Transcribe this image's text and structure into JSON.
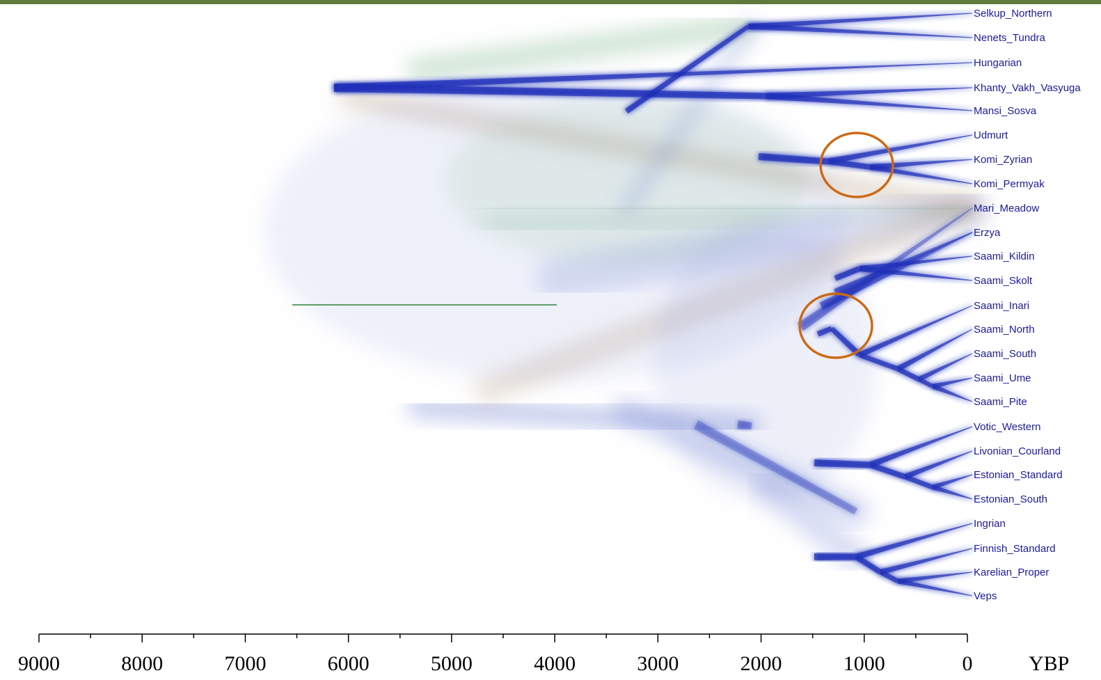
{
  "tree": {
    "taxa": [
      "Selkup_Northern",
      "Nenets_Tundra",
      "Hungarian",
      "Khanty_Vakh_Vasyuga",
      "Mansi_Sosva",
      "Udmurt",
      "Komi_Zyrian",
      "Komi_Permyak",
      "Mari_Meadow",
      "Erzya",
      "Saami_Kildin",
      "Saami_Skolt",
      "Saami_Inari",
      "Saami_North",
      "Saami_South",
      "Saami_Ume",
      "Saami_Pite",
      "Votic_Western",
      "Livonian_Courland",
      "Estonian_Standard",
      "Estonian_South",
      "Ingrian",
      "Finnish_Standard",
      "Karelian_Proper",
      "Veps"
    ],
    "axis": {
      "ticks": [
        "9000",
        "8000",
        "7000",
        "6000",
        "5000",
        "4000",
        "3000",
        "2000",
        "1000",
        "0"
      ],
      "tick_values": [
        9000,
        8000,
        7000,
        6000,
        5000,
        4000,
        3000,
        2000,
        1000,
        0
      ],
      "minor_step": 500,
      "unit": "YBP"
    },
    "colors": {
      "branch": "#1f2fb8",
      "highlight_circle": "#cc6a14",
      "cloud_blue": "#7f8fd8",
      "cloud_green": "#66a877",
      "cloud_brown": "#a5835f",
      "top_bar": "#5f7a3a"
    },
    "highlights": [
      "Komi split",
      "Saami split"
    ]
  }
}
